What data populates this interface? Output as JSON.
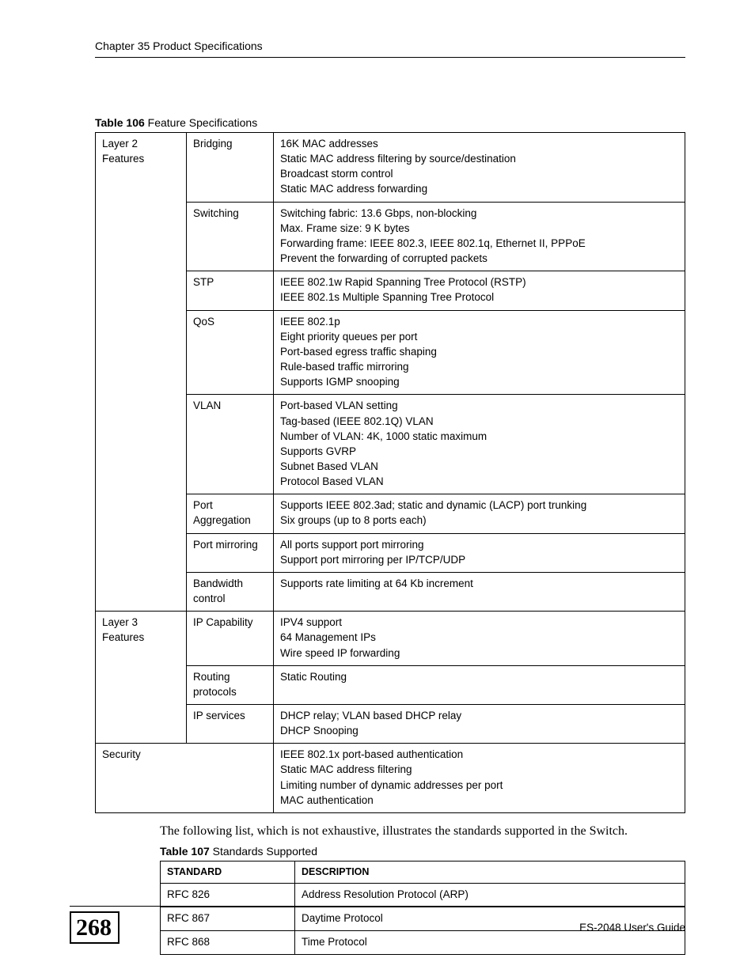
{
  "header": {
    "chapter": "Chapter 35 Product Specifications"
  },
  "table106": {
    "caption_bold": "Table 106",
    "caption_rest": "   Feature Specifications",
    "groups": [
      {
        "category": "Layer 2 Features",
        "rows": [
          {
            "feature": "Bridging",
            "details": "16K MAC addresses\nStatic MAC address filtering by source/destination\nBroadcast storm control\nStatic MAC address forwarding"
          },
          {
            "feature": "Switching",
            "details": "Switching fabric: 13.6 Gbps, non-blocking\nMax. Frame size: 9 K bytes\nForwarding frame: IEEE 802.3, IEEE 802.1q, Ethernet II, PPPoE\nPrevent the forwarding of corrupted packets"
          },
          {
            "feature": "STP",
            "details": "IEEE 802.1w Rapid Spanning Tree Protocol (RSTP)\nIEEE 802.1s Multiple Spanning Tree Protocol"
          },
          {
            "feature": "QoS",
            "details": "IEEE 802.1p\nEight priority queues per port\nPort-based egress traffic shaping\nRule-based traffic mirroring\nSupports IGMP snooping"
          },
          {
            "feature": "VLAN",
            "details": "Port-based VLAN setting\nTag-based (IEEE 802.1Q) VLAN\nNumber of VLAN: 4K, 1000 static maximum\nSupports GVRP\nSubnet Based VLAN\nProtocol Based VLAN"
          },
          {
            "feature": "Port Aggregation",
            "details": "Supports IEEE 802.3ad; static and dynamic (LACP) port trunking\nSix groups (up to 8 ports each)"
          },
          {
            "feature": "Port mirroring",
            "details": "All ports support port mirroring\nSupport port mirroring per IP/TCP/UDP"
          },
          {
            "feature": "Bandwidth control",
            "details": "Supports rate limiting at 64 Kb increment"
          }
        ]
      },
      {
        "category": "Layer 3 Features",
        "rows": [
          {
            "feature": "IP Capability",
            "details": "IPV4 support\n64 Management IPs\nWire speed IP forwarding"
          },
          {
            "feature": "Routing protocols",
            "details": "Static Routing"
          },
          {
            "feature": "IP services",
            "details": "DHCP relay; VLAN based DHCP relay\nDHCP Snooping"
          }
        ]
      },
      {
        "category": "Security",
        "span_feature": true,
        "rows": [
          {
            "feature": "",
            "details": "IEEE 802.1x port-based authentication\nStatic MAC address filtering\nLimiting number of dynamic addresses per port\nMAC authentication"
          }
        ]
      }
    ]
  },
  "body_para": "The following list, which is not exhaustive, illustrates the standards supported in the Switch.",
  "table107": {
    "caption_bold": "Table 107",
    "caption_rest": "   Standards Supported",
    "header": {
      "c1": "STANDARD",
      "c2": "DESCRIPTION"
    },
    "rows": [
      {
        "c1": "RFC 826",
        "c2": "Address Resolution Protocol (ARP)"
      },
      {
        "c1": "RFC 867",
        "c2": "Daytime Protocol"
      },
      {
        "c1": "RFC 868",
        "c2": "Time Protocol"
      }
    ]
  },
  "footer": {
    "page": "268",
    "guide": "ES-2048 User's Guide"
  }
}
